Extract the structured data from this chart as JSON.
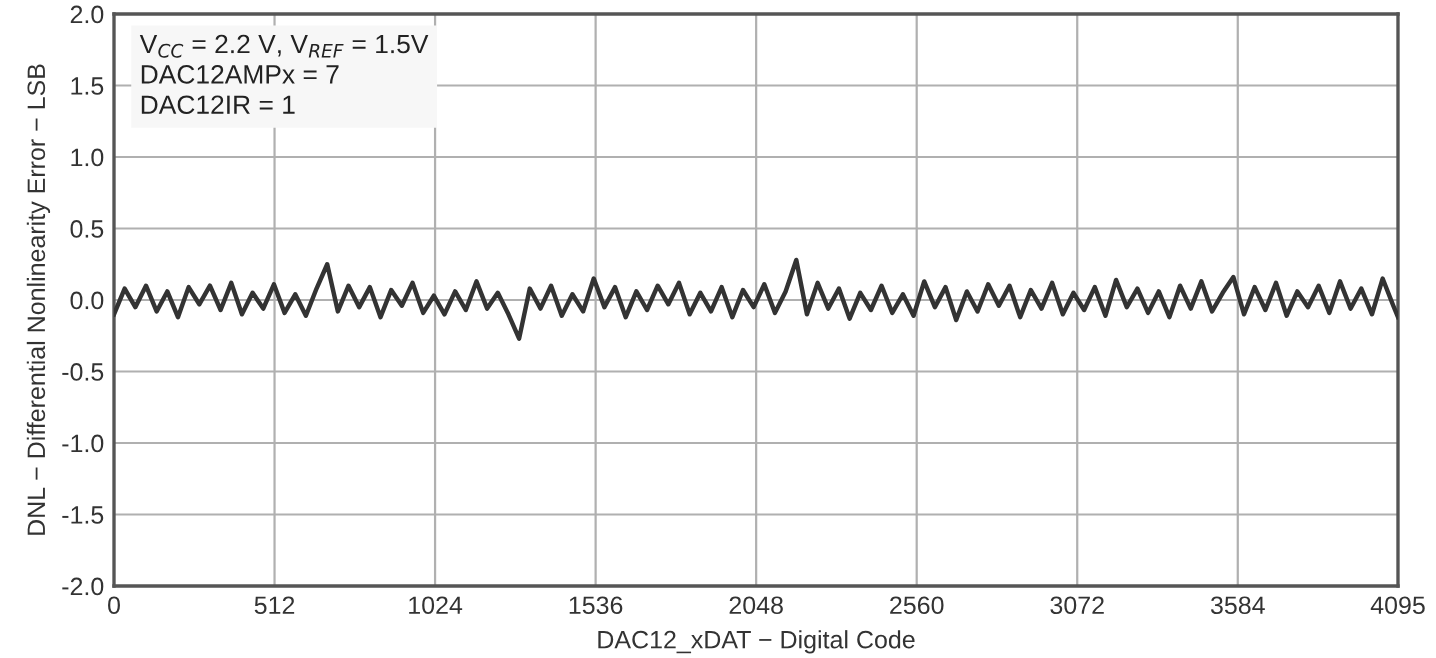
{
  "chart_data": {
    "type": "line",
    "xlabel": "DAC12_xDAT − Digital Code",
    "ylabel": "DNL − Differential Nonlinearity Error − LSB",
    "x": [
      0,
      34,
      68,
      102,
      136,
      170,
      204,
      238,
      272,
      306,
      340,
      374,
      408,
      442,
      476,
      510,
      544,
      578,
      612,
      646,
      680,
      714,
      748,
      782,
      816,
      850,
      884,
      918,
      952,
      986,
      1020,
      1054,
      1088,
      1122,
      1156,
      1190,
      1224,
      1258,
      1292,
      1326,
      1360,
      1394,
      1428,
      1462,
      1496,
      1530,
      1564,
      1598,
      1632,
      1666,
      1700,
      1734,
      1768,
      1802,
      1836,
      1870,
      1904,
      1938,
      1972,
      2006,
      2040,
      2074,
      2108,
      2142,
      2176,
      2210,
      2244,
      2278,
      2312,
      2346,
      2380,
      2414,
      2448,
      2482,
      2516,
      2550,
      2584,
      2618,
      2652,
      2686,
      2720,
      2754,
      2788,
      2822,
      2856,
      2890,
      2924,
      2958,
      2992,
      3026,
      3060,
      3094,
      3128,
      3162,
      3196,
      3230,
      3264,
      3298,
      3332,
      3366,
      3400,
      3434,
      3468,
      3502,
      3536,
      3570,
      3604,
      3638,
      3672,
      3706,
      3740,
      3774,
      3808,
      3842,
      3876,
      3910,
      3944,
      3978,
      4012,
      4046,
      4080,
      4095
    ],
    "series": [
      {
        "color": "#333333",
        "values": [
          -0.1,
          0.08,
          -0.05,
          0.1,
          -0.08,
          0.06,
          -0.12,
          0.09,
          -0.03,
          0.1,
          -0.07,
          0.12,
          -0.1,
          0.05,
          -0.06,
          0.11,
          -0.09,
          0.04,
          -0.11,
          0.08,
          0.25,
          -0.08,
          0.1,
          -0.05,
          0.09,
          -0.12,
          0.07,
          -0.04,
          0.12,
          -0.09,
          0.03,
          -0.1,
          0.06,
          -0.07,
          0.13,
          -0.06,
          0.05,
          -0.1,
          -0.27,
          0.08,
          -0.06,
          0.1,
          -0.11,
          0.04,
          -0.08,
          0.15,
          -0.05,
          0.09,
          -0.12,
          0.06,
          -0.07,
          0.1,
          -0.03,
          0.12,
          -0.1,
          0.05,
          -0.08,
          0.09,
          -0.12,
          0.07,
          -0.05,
          0.11,
          -0.09,
          0.06,
          0.28,
          -0.1,
          0.12,
          -0.06,
          0.08,
          -0.13,
          0.05,
          -0.07,
          0.1,
          -0.09,
          0.04,
          -0.11,
          0.13,
          -0.05,
          0.09,
          -0.14,
          0.06,
          -0.08,
          0.11,
          -0.04,
          0.1,
          -0.12,
          0.07,
          -0.06,
          0.12,
          -0.1,
          0.05,
          -0.07,
          0.09,
          -0.11,
          0.14,
          -0.05,
          0.08,
          -0.09,
          0.06,
          -0.12,
          0.1,
          -0.06,
          0.13,
          -0.08,
          0.05,
          0.16,
          -0.1,
          0.09,
          -0.07,
          0.12,
          -0.11,
          0.06,
          -0.05,
          0.1,
          -0.09,
          0.13,
          -0.06,
          0.08,
          -0.1,
          0.15,
          -0.04,
          -0.12
        ]
      }
    ],
    "xlim": [
      0,
      4095
    ],
    "xticks": [
      0,
      512,
      1024,
      1536,
      2048,
      2560,
      3072,
      3584,
      4095
    ],
    "ylim": [
      -2,
      2
    ],
    "yticks": [
      {
        "value": -2,
        "label": "-2.0"
      },
      {
        "value": -1.5,
        "label": "-1.5"
      },
      {
        "value": -1,
        "label": "-1.0"
      },
      {
        "value": -0.5,
        "label": "-0.5"
      },
      {
        "value": 0,
        "label": "0.0"
      },
      {
        "value": 0.5,
        "label": "0.5"
      },
      {
        "value": 1,
        "label": "1.0"
      },
      {
        "value": 1.5,
        "label": "1.5"
      },
      {
        "value": 2,
        "label": "2.0"
      }
    ],
    "grid": true,
    "marker": "none",
    "line_style": "solid",
    "annotations": [
      "V$_{CC}$ = 2.2 V, V$_{REF}$ = 1.5V\nDAC12AMPx = 7\nDAC12IR = 1"
    ]
  }
}
